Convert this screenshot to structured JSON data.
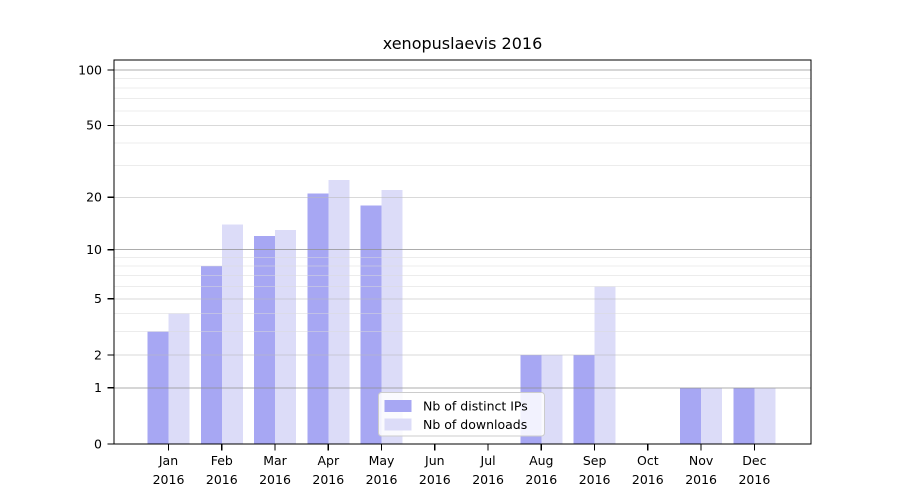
{
  "title": "xenopuslaevis 2016",
  "chart_data": {
    "type": "bar",
    "title": "xenopuslaevis 2016",
    "categories": [
      "Jan 2016",
      "Feb 2016",
      "Mar 2016",
      "Apr 2016",
      "May 2016",
      "Jun 2016",
      "Jul 2016",
      "Aug 2016",
      "Sep 2016",
      "Oct 2016",
      "Nov 2016",
      "Dec 2016"
    ],
    "series": [
      {
        "name": "Nb of distinct IPs",
        "color": "#a7a7f3",
        "values": [
          3,
          8,
          12,
          21,
          18,
          0,
          0,
          2,
          2,
          0,
          1,
          1
        ]
      },
      {
        "name": "Nb of downloads",
        "color": "#dcdcf8",
        "values": [
          4,
          14,
          13,
          25,
          22,
          0,
          0,
          2,
          6,
          0,
          1,
          1
        ]
      }
    ],
    "yscale": "log1p",
    "ylim": [
      0,
      100
    ],
    "yticks": [
      0,
      1,
      2,
      5,
      10,
      20,
      50,
      100
    ],
    "y_gridlines_decade": [
      1,
      10,
      100
    ],
    "y_gridlines_mid": [
      2,
      5,
      20,
      50
    ],
    "y_gridlines_minor": [
      3,
      4,
      6,
      7,
      8,
      9,
      30,
      40,
      60,
      70,
      80,
      90
    ],
    "xlabel": "",
    "ylabel": "",
    "grid": "on",
    "legend_position": "lower-center-inside"
  },
  "colors": {
    "background": "#ffffff",
    "axis": "#000000",
    "grid_decade": "#909090",
    "grid_mid": "#b9b9b9",
    "grid_minor": "#d9d9d9",
    "legend_border": "#cccccc",
    "legend_bg": "#ffffff"
  }
}
